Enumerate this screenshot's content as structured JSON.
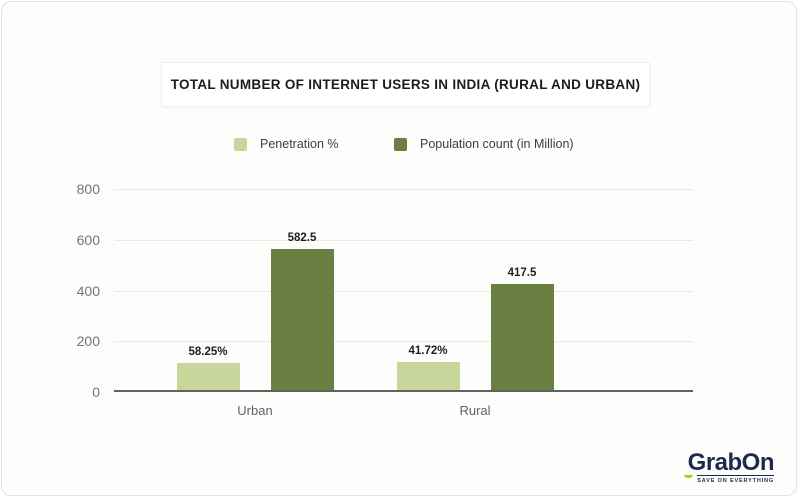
{
  "title": "TOTAL NUMBER OF INTERNET USERS IN INDIA (RURAL AND URBAN)",
  "legend": [
    {
      "label": "Penetration %",
      "color": "#c8d69b"
    },
    {
      "label": "Population count (in Million)",
      "color": "#6a7f42"
    }
  ],
  "chart_data": {
    "type": "bar",
    "title": "TOTAL NUMBER OF INTERNET USERS IN INDIA (RURAL AND URBAN)",
    "categories": [
      "Urban",
      "Rural"
    ],
    "series": [
      {
        "name": "Penetration %",
        "color": "#c8d69b",
        "values": [
          58.25,
          41.72
        ],
        "labels": [
          "58.25%",
          "41.72%"
        ],
        "display_values": [
          106,
          110
        ]
      },
      {
        "name": "Population count (in Million)",
        "color": "#6a7f42",
        "values": [
          582.5,
          417.5
        ],
        "labels": [
          "582.5",
          "417.5"
        ],
        "display_values": [
          560,
          422
        ]
      }
    ],
    "y_ticks": [
      0,
      200,
      400,
      600,
      800
    ],
    "ylim": [
      0,
      800
    ],
    "grid": true,
    "legend_position": "top",
    "xlabel": "",
    "ylabel": ""
  },
  "logo": {
    "brand": "GrabOn",
    "tagline": "SAVE ON EVERYTHING",
    "brand_color": "#1d2a4e",
    "accent_color": "#a6ce0b"
  }
}
